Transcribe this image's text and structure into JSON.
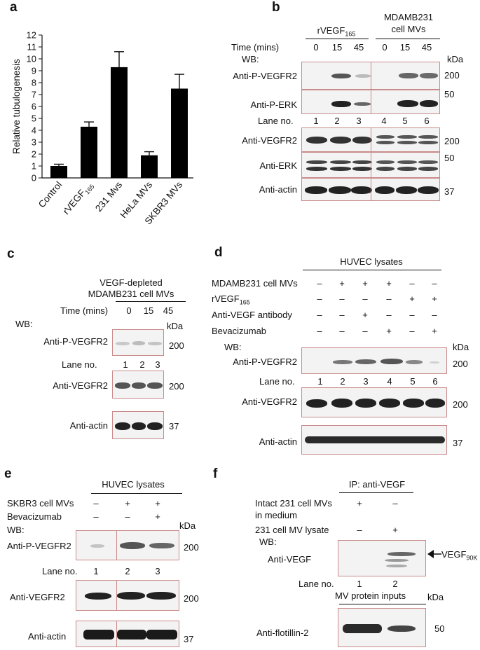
{
  "panel_a": {
    "letter": "a",
    "chart_data": {
      "type": "bar",
      "categories": [
        "Control",
        "rVEGF165",
        "231 Mvs",
        "HeLa MVs",
        "SKBR3 MVs"
      ],
      "values": [
        1.0,
        4.3,
        9.3,
        1.9,
        7.5
      ],
      "errors": [
        0.15,
        0.4,
        1.3,
        0.3,
        1.2
      ],
      "ylabel": "Relative tubulogenesis",
      "ylim": [
        0,
        12
      ],
      "yticks": [
        0,
        1,
        2,
        3,
        4,
        5,
        6,
        7,
        8,
        9,
        10,
        11,
        12
      ],
      "color": "#000000"
    }
  },
  "panel_b": {
    "letter": "b",
    "group1": "rVEGF",
    "group1_sub": "165",
    "group2_line1": "MDAMB231",
    "group2_line2": "cell MVs",
    "time_label": "Time (mins)",
    "times": [
      "0",
      "15",
      "45",
      "0",
      "15",
      "45"
    ],
    "wb": "WB:",
    "kda": "kDa",
    "rows": [
      "Anti-P-VEGFR2",
      "Anti-P-ERK",
      "Anti-VEGFR2",
      "Anti-ERK",
      "Anti-actin"
    ],
    "lane_label": "Lane no.",
    "lanes": [
      "1",
      "2",
      "3",
      "4",
      "5",
      "6"
    ],
    "markers": [
      "200",
      "50",
      "200",
      "50",
      "37"
    ]
  },
  "panel_c": {
    "letter": "c",
    "title_line1": "VEGF-depleted",
    "title_line2": "MDAMB231 cell MVs",
    "time_label": "Time (mins)",
    "times": [
      "0",
      "15",
      "45"
    ],
    "wb": "WB:",
    "kda": "kDa",
    "rows": [
      "Anti-P-VEGFR2",
      "Anti-VEGFR2",
      "Anti-actin"
    ],
    "lane_label": "Lane no.",
    "lanes": [
      "1",
      "2",
      "3"
    ],
    "markers": [
      "200",
      "200",
      "37"
    ]
  },
  "panel_d": {
    "letter": "d",
    "header": "HUVEC lysates",
    "conditions": [
      {
        "label": "MDAMB231 cell MVs",
        "signs": [
          "–",
          "+",
          "+",
          "+",
          "–",
          "–"
        ]
      },
      {
        "label": "rVEGF",
        "sub": "165",
        "signs": [
          "–",
          "–",
          "–",
          "–",
          "+",
          "+"
        ]
      },
      {
        "label": "Anti-VEGF antibody",
        "signs": [
          "–",
          "–",
          "+",
          "–",
          "–",
          "–"
        ]
      },
      {
        "label": "Bevacizumab",
        "signs": [
          "–",
          "–",
          "–",
          "+",
          "–",
          "+"
        ]
      }
    ],
    "wb": "WB:",
    "kda": "kDa",
    "rows": [
      "Anti-P-VEGFR2",
      "Anti-VEGFR2",
      "Anti-actin"
    ],
    "lane_label": "Lane no.",
    "lanes": [
      "1",
      "2",
      "3",
      "4",
      "5",
      "6"
    ],
    "markers": [
      "200",
      "200",
      "37"
    ]
  },
  "panel_e": {
    "letter": "e",
    "header": "HUVEC lysates",
    "conditions": [
      {
        "label": "SKBR3 cell MVs",
        "signs": [
          "–",
          "+",
          "+"
        ]
      },
      {
        "label": "Bevacizumab",
        "signs": [
          "–",
          "–",
          "+"
        ]
      }
    ],
    "wb": "WB:",
    "kda": "kDa",
    "rows": [
      "Anti-P-VEGFR2",
      "Anti-VEGFR2",
      "Anti-actin"
    ],
    "lane_label": "Lane no.",
    "lanes": [
      "1",
      "2",
      "3"
    ],
    "markers": [
      "200",
      "200",
      "37"
    ]
  },
  "panel_f": {
    "letter": "f",
    "header": "IP: anti-VEGF",
    "cond1_line1": "Intact 231 cell MVs",
    "cond1_line2": "in medium",
    "cond1_signs": [
      "+",
      "–"
    ],
    "cond2": "231 cell MV lysate",
    "cond2_signs": [
      "–",
      "+"
    ],
    "wb": "WB:",
    "row1": "Anti-VEGF",
    "arrow_label": "VEGF",
    "arrow_sub": "90K",
    "lane_label": "Lane no.",
    "lanes": [
      "1",
      "2"
    ],
    "inputs_label": "MV protein inputs",
    "kda": "kDa",
    "row2": "Anti-flotillin-2",
    "marker": "50"
  }
}
